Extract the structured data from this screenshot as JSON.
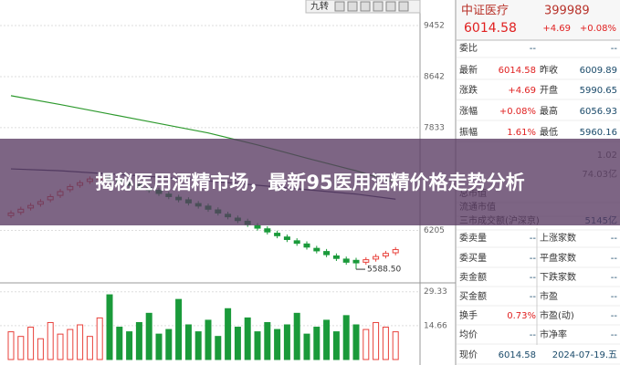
{
  "toolbar": {
    "label": "九转"
  },
  "chart_data": {
    "type": "candlestick",
    "ylim": [
      5445,
      9857
    ],
    "yticks": [
      9452,
      8642,
      7833,
      6205
    ],
    "grid": true,
    "open": [
      6440,
      6490,
      6560,
      6620,
      6690,
      6760,
      6850,
      6920,
      6980,
      7010,
      7050,
      7010,
      6960,
      6930,
      6880,
      6840,
      6780,
      6730,
      6690,
      6630,
      6590,
      6530,
      6460,
      6400,
      6350,
      6280,
      6230,
      6160,
      6100,
      6040,
      5990,
      5920,
      5870,
      5800,
      5750,
      5730,
      5700,
      5750,
      5800,
      5850
    ],
    "high": [
      6520,
      6580,
      6640,
      6700,
      6780,
      6860,
      6940,
      7000,
      7060,
      7080,
      7090,
      7050,
      7000,
      6970,
      6920,
      6880,
      6820,
      6770,
      6730,
      6670,
      6630,
      6570,
      6500,
      6440,
      6390,
      6320,
      6270,
      6200,
      6140,
      6080,
      6030,
      5960,
      5910,
      5840,
      5790,
      5770,
      5780,
      5830,
      5880,
      5940
    ],
    "low": [
      6400,
      6450,
      6520,
      6580,
      6650,
      6720,
      6810,
      6880,
      6940,
      6970,
      6960,
      6920,
      6880,
      6840,
      6800,
      6750,
      6700,
      6650,
      6600,
      6550,
      6500,
      6440,
      6380,
      6320,
      6260,
      6200,
      6140,
      6080,
      6020,
      5960,
      5900,
      5840,
      5780,
      5720,
      5660,
      5588.5,
      5660,
      5710,
      5760,
      5810
    ],
    "close": [
      6480,
      6540,
      6600,
      6660,
      6740,
      6820,
      6900,
      6960,
      7020,
      7040,
      7000,
      6960,
      6920,
      6880,
      6840,
      6790,
      6740,
      6690,
      6640,
      6590,
      6540,
      6480,
      6420,
      6360,
      6300,
      6240,
      6180,
      6120,
      6060,
      6000,
      5940,
      5880,
      5820,
      5760,
      5700,
      5690,
      5740,
      5790,
      5840,
      5900
    ],
    "up_color": "#e8413b",
    "down_color": "#1a9a3a",
    "low_label": {
      "value": 5588.5,
      "label": "5588.50"
    },
    "lines": [
      {
        "color": "#2e9a2e",
        "x": [
          0,
          5,
          10,
          15,
          20,
          25,
          30,
          35,
          39
        ],
        "values": [
          8340,
          8200,
          8050,
          7900,
          7750,
          7560,
          7350,
          7150,
          6960
        ]
      },
      {
        "color": "#3a3a5a",
        "x": [
          0,
          5,
          10,
          15,
          20,
          25,
          30,
          35,
          39
        ],
        "values": [
          7180,
          7150,
          7100,
          7050,
          6990,
          6920,
          6850,
          6780,
          6700
        ]
      }
    ],
    "volume": {
      "ylim": [
        0,
        30
      ],
      "yticks": [
        29.33,
        14.66
      ],
      "values": [
        12,
        10,
        14,
        9,
        16,
        11,
        13,
        15,
        10,
        18,
        28,
        14,
        12,
        16,
        20,
        11,
        13,
        26,
        15,
        12,
        17,
        10,
        22,
        14,
        18,
        12,
        16,
        13,
        15,
        20,
        11,
        14,
        17,
        12,
        19,
        15,
        13,
        16,
        14,
        12
      ]
    }
  },
  "quote": {
    "name": "中证医疗",
    "code": "399989",
    "price": "6014.58",
    "change": "+4.69",
    "pct": "+0.08%"
  },
  "rows_top": [
    [
      "委比",
      "--",
      "--"
    ],
    [
      "最新",
      "6014.58",
      "昨收",
      "6009.89"
    ],
    [
      "涨跌",
      "+4.69",
      "开盘",
      "5990.65"
    ],
    [
      "涨幅",
      "+0.08%",
      "最高",
      "6056.93"
    ],
    [
      "振幅",
      "1.61%",
      "最低",
      "5960.16"
    ]
  ],
  "faded": [
    "1.02",
    "74.03亿"
  ],
  "rows_mid": [
    [
      "总市值"
    ],
    [
      "流通市值"
    ],
    [
      "三市成交额(沪深京)",
      "5145亿"
    ]
  ],
  "rows_bottom": [
    [
      "委卖量",
      "--",
      "上涨家数",
      "--"
    ],
    [
      "委买量",
      "--",
      "平盘家数",
      "--"
    ],
    [
      "卖金额",
      "--",
      "下跌家数",
      "--"
    ],
    [
      "买金额",
      "--",
      "市盈",
      "--"
    ],
    [
      "换手",
      "0.73%",
      "市盈(动)",
      "--"
    ],
    [
      "均价",
      "--",
      "市净率",
      "--"
    ],
    [
      "现价",
      "6014.58",
      "2024-07-19.五"
    ]
  ],
  "overlay_title": "揭秘医用酒精市场，最新95医用酒精价格走势分析"
}
